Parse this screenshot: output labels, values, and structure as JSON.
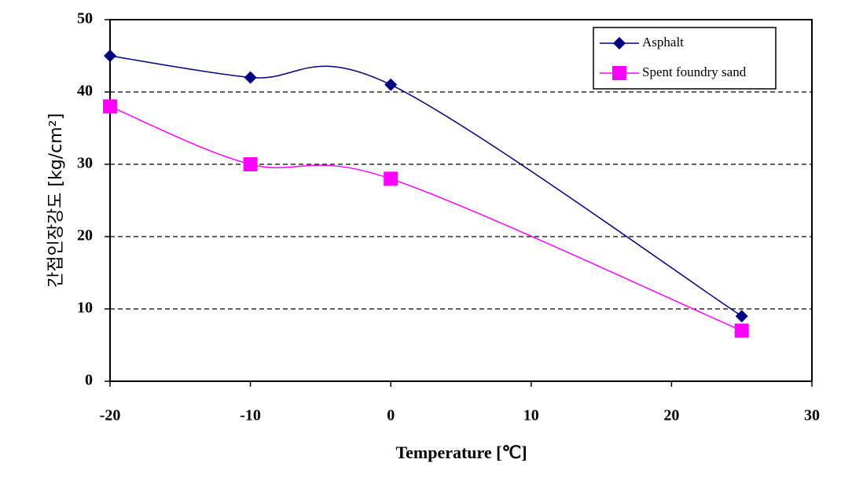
{
  "chart_data": {
    "type": "line",
    "x_label": "Temperature [℃]",
    "y_label": "간접인장강도 [kg/cm²]",
    "x": [
      -20,
      -10,
      0,
      25
    ],
    "series": [
      {
        "name": "Asphalt",
        "color": "#000080",
        "marker": "diamond",
        "values": [
          45,
          42,
          41,
          9
        ]
      },
      {
        "name": "Spent foundry sand",
        "color": "#ff00ff",
        "marker": "square",
        "values": [
          38,
          30,
          28,
          7
        ]
      }
    ],
    "xlim": [
      -20,
      30
    ],
    "xticks": [
      -20,
      -10,
      0,
      10,
      20,
      30
    ],
    "ylim": [
      0,
      50
    ],
    "yticks": [
      0,
      10,
      20,
      30,
      40,
      50
    ],
    "grid": true,
    "legend": "upper right"
  }
}
